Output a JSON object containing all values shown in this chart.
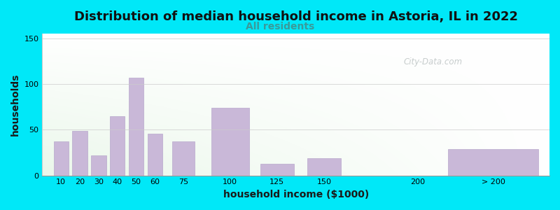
{
  "title": "Distribution of median household income in Astoria, IL in 2022",
  "subtitle": "All residents",
  "xlabel": "household income ($1000)",
  "ylabel": "households",
  "bar_labels": [
    "10",
    "20",
    "30",
    "40",
    "50",
    "60",
    "75",
    "100",
    "125",
    "150",
    "200",
    "> 200"
  ],
  "bar_values": [
    37,
    49,
    22,
    65,
    107,
    46,
    37,
    74,
    13,
    19,
    0,
    29
  ],
  "bar_color": "#c9b8d8",
  "bar_edgecolor": "#b8a8cc",
  "ylim": [
    0,
    155
  ],
  "yticks": [
    0,
    50,
    100,
    150
  ],
  "background_color": "#00e8f8",
  "title_fontsize": 13,
  "subtitle_fontsize": 10,
  "subtitle_color": "#3a9a9a",
  "axis_label_fontsize": 10,
  "axis_label_color": "#1a1a1a",
  "watermark": "City-Data.com",
  "x_centers": [
    10,
    20,
    30,
    40,
    50,
    60,
    75,
    100,
    125,
    150,
    200,
    240
  ],
  "bar_widths": [
    8,
    8,
    8,
    8,
    8,
    8,
    12,
    20,
    18,
    18,
    18,
    48
  ]
}
